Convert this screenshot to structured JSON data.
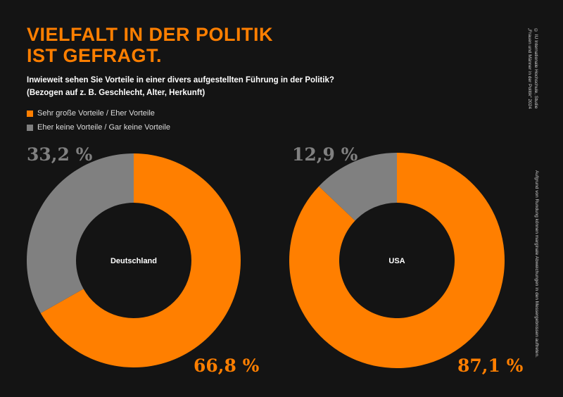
{
  "title_lines": [
    "VIELFALT IN DER POLITIK",
    "IST GEFRAGT."
  ],
  "subtitle_lines": [
    "Inwieweit sehen Sie Vorteile in einer divers aufgestellten Führung in der Politik?",
    "(Bezogen auf z. B. Geschlecht, Alter, Herkunft)"
  ],
  "side_notes": {
    "copyright_lines": [
      "© IU Internationale Hochschule, Studie",
      "„Frauen und Männer in der Politik“ 2024"
    ],
    "rounding": "Aufgrund von Rundung können marginale Abweichungen in den Messergebnissen auftreten."
  },
  "colors": {
    "orange": "#ff7f00",
    "gray": "#808080",
    "background": "#141414"
  },
  "chart_data": [
    {
      "type": "pie",
      "center_label": "Deutschland",
      "slices": [
        {
          "name": "Sehr große Vorteile / Eher Vorteile",
          "value": 66.8,
          "label": "66,8 %"
        },
        {
          "name": "Eher keine Vorteile / Gar keine Vorteile",
          "value": 33.2,
          "label": "33,2 %"
        }
      ]
    },
    {
      "type": "pie",
      "center_label": "USA",
      "slices": [
        {
          "name": "Sehr große Vorteile / Eher Vorteile",
          "value": 87.1,
          "label": "87,1 %"
        },
        {
          "name": "Eher keine Vorteile / Gar keine Vorteile",
          "value": 12.9,
          "label": "12,9 %"
        }
      ]
    }
  ],
  "legend": [
    {
      "label": "Sehr große Vorteile / Eher Vorteile",
      "color": "#ff7f00"
    },
    {
      "label": "Eher keine Vorteile / Gar keine Vorteile",
      "color": "#808080"
    }
  ]
}
